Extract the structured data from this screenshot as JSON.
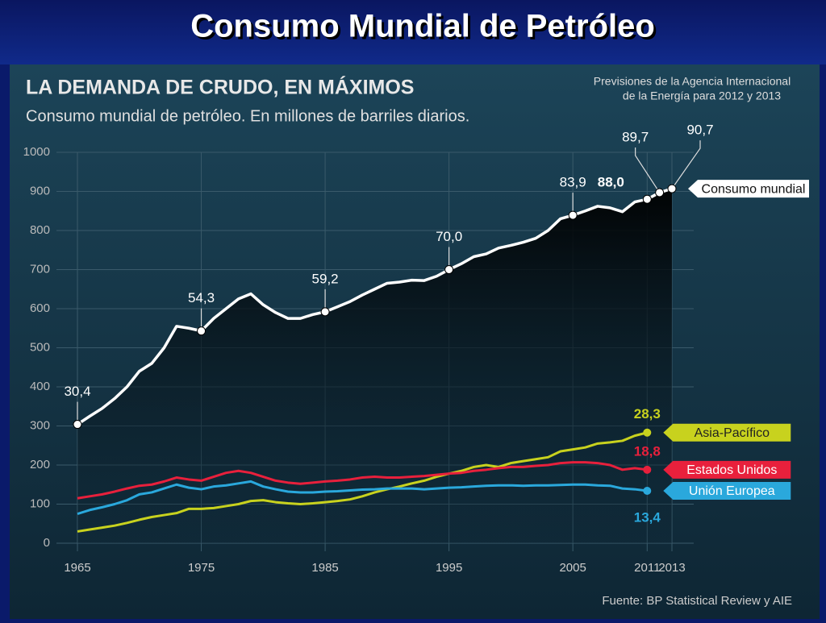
{
  "header": {
    "title": "Consumo Mundial de Petróleo"
  },
  "chart_data": {
    "type": "line",
    "title": "LA DEMANDA DE CRUDO, EN MÁXIMOS",
    "subtitle": "Consumo mundial de petróleo. En millones de barriles diarios.",
    "note": [
      "Previsiones de la Agencia Internacional",
      "de la Energía para 2012 y 2013"
    ],
    "source": "Fuente: BP Statistical Review y AIE",
    "x": [
      1965,
      1966,
      1967,
      1968,
      1969,
      1970,
      1971,
      1972,
      1973,
      1974,
      1975,
      1976,
      1977,
      1978,
      1979,
      1980,
      1981,
      1982,
      1983,
      1984,
      1985,
      1986,
      1987,
      1988,
      1989,
      1990,
      1991,
      1992,
      1993,
      1994,
      1995,
      1996,
      1997,
      1998,
      1999,
      2000,
      2001,
      2002,
      2003,
      2004,
      2005,
      2006,
      2007,
      2008,
      2009,
      2010,
      2011,
      2012,
      2013
    ],
    "xlim": [
      1965,
      2013
    ],
    "xticks": [
      1965,
      1975,
      1985,
      1995,
      2005,
      2011,
      2013
    ],
    "ylim": [
      0,
      1000
    ],
    "yticks": [
      0,
      100,
      200,
      300,
      400,
      500,
      600,
      700,
      800,
      900,
      1000
    ],
    "grid": true,
    "series": [
      {
        "name": "Consumo mundial",
        "color": "#ffffff",
        "values": [
          304,
          325,
          345,
          370,
          400,
          440,
          460,
          500,
          555,
          550,
          543,
          575,
          600,
          625,
          638,
          610,
          590,
          575,
          575,
          585,
          592,
          605,
          618,
          635,
          650,
          665,
          668,
          673,
          672,
          683,
          700,
          715,
          733,
          740,
          755,
          762,
          770,
          780,
          800,
          830,
          839,
          850,
          862,
          858,
          848,
          873,
          880,
          897,
          907
        ],
        "value_labels": [
          "30,4",
          null,
          null,
          null,
          null,
          null,
          null,
          null,
          null,
          null,
          "54,3",
          null,
          null,
          null,
          null,
          null,
          null,
          null,
          null,
          null,
          "59,2",
          null,
          null,
          null,
          null,
          null,
          null,
          null,
          null,
          null,
          "70,0",
          null,
          null,
          null,
          null,
          null,
          null,
          null,
          null,
          null,
          "83,9",
          null,
          null,
          null,
          null,
          null,
          "88,0",
          "89,7",
          "90,7"
        ]
      },
      {
        "name": "Asia-Pacífico",
        "color": "#c8d21e",
        "values": [
          30,
          35,
          40,
          45,
          52,
          60,
          67,
          72,
          77,
          88,
          88,
          90,
          95,
          100,
          108,
          110,
          105,
          102,
          100,
          102,
          105,
          108,
          112,
          120,
          130,
          138,
          145,
          153,
          160,
          170,
          178,
          185,
          195,
          200,
          195,
          205,
          210,
          215,
          220,
          235,
          240,
          245,
          255,
          258,
          262,
          275,
          283,
          null,
          null
        ],
        "value_labels": [
          null,
          null,
          null,
          null,
          null,
          null,
          null,
          null,
          null,
          null,
          null,
          null,
          null,
          null,
          null,
          null,
          null,
          null,
          null,
          null,
          null,
          null,
          null,
          null,
          null,
          null,
          null,
          null,
          null,
          null,
          null,
          null,
          null,
          null,
          null,
          null,
          null,
          null,
          null,
          null,
          null,
          null,
          null,
          null,
          null,
          null,
          "28,3",
          null,
          null
        ]
      },
      {
        "name": "Estados Unidos",
        "color": "#e8203c",
        "values": [
          115,
          120,
          125,
          132,
          140,
          147,
          150,
          158,
          168,
          163,
          160,
          170,
          180,
          185,
          180,
          170,
          160,
          155,
          152,
          155,
          158,
          160,
          163,
          168,
          170,
          168,
          168,
          170,
          172,
          175,
          178,
          180,
          185,
          188,
          192,
          195,
          195,
          198,
          200,
          205,
          207,
          207,
          205,
          200,
          188,
          192,
          188,
          null,
          null
        ],
        "value_labels": [
          null,
          null,
          null,
          null,
          null,
          null,
          null,
          null,
          null,
          null,
          null,
          null,
          null,
          null,
          null,
          null,
          null,
          null,
          null,
          null,
          null,
          null,
          null,
          null,
          null,
          null,
          null,
          null,
          null,
          null,
          null,
          null,
          null,
          null,
          null,
          null,
          null,
          null,
          null,
          null,
          null,
          null,
          null,
          null,
          null,
          null,
          "18,8",
          null,
          null
        ]
      },
      {
        "name": "Unión Europea",
        "color": "#2aa8dc",
        "values": [
          75,
          85,
          92,
          100,
          110,
          125,
          130,
          140,
          150,
          142,
          138,
          145,
          148,
          153,
          158,
          145,
          138,
          132,
          130,
          130,
          132,
          133,
          135,
          137,
          138,
          140,
          140,
          140,
          138,
          140,
          142,
          143,
          145,
          147,
          148,
          148,
          147,
          148,
          148,
          149,
          150,
          150,
          148,
          147,
          140,
          138,
          134,
          null,
          null
        ],
        "value_labels": [
          null,
          null,
          null,
          null,
          null,
          null,
          null,
          null,
          null,
          null,
          null,
          null,
          null,
          null,
          null,
          null,
          null,
          null,
          null,
          null,
          null,
          null,
          null,
          null,
          null,
          null,
          null,
          null,
          null,
          null,
          null,
          null,
          null,
          null,
          null,
          null,
          null,
          null,
          null,
          null,
          null,
          null,
          null,
          null,
          null,
          null,
          "13,4",
          null,
          null
        ]
      }
    ]
  }
}
